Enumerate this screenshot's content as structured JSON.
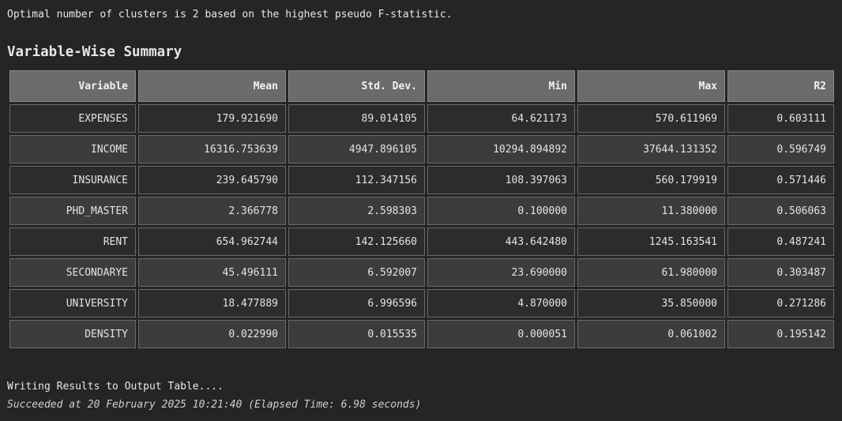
{
  "messages": {
    "optimal": "Optimal number of clusters is 2 based on the highest pseudo F-statistic.",
    "writing": "Writing Results to Output Table....",
    "succeeded": "Succeeded at 20 February 2025 10:21:40 (Elapsed Time: 6.98 seconds)"
  },
  "summary": {
    "title": "Variable-Wise Summary",
    "columns": [
      "Variable",
      "Mean",
      "Std. Dev.",
      "Min",
      "Max",
      "R2"
    ],
    "rows": [
      [
        "EXPENSES",
        "179.921690",
        "89.014105",
        "64.621173",
        "570.611969",
        "0.603111"
      ],
      [
        "INCOME",
        "16316.753639",
        "4947.896105",
        "10294.894892",
        "37644.131352",
        "0.596749"
      ],
      [
        "INSURANCE",
        "239.645790",
        "112.347156",
        "108.397063",
        "560.179919",
        "0.571446"
      ],
      [
        "PHD_MASTER",
        "2.366778",
        "2.598303",
        "0.100000",
        "11.380000",
        "0.506063"
      ],
      [
        "RENT",
        "654.962744",
        "142.125660",
        "443.642480",
        "1245.163541",
        "0.487241"
      ],
      [
        "SECONDARYE",
        "45.496111",
        "6.592007",
        "23.690000",
        "61.980000",
        "0.303487"
      ],
      [
        "UNIVERSITY",
        "18.477889",
        "6.996596",
        "4.870000",
        "35.850000",
        "0.271286"
      ],
      [
        "DENSITY",
        "0.022990",
        "0.015535",
        "0.000051",
        "0.061002",
        "0.195142"
      ]
    ]
  },
  "colors": {
    "background": "#252526",
    "header_cell": "#6b6b6b",
    "row_odd": "#2c2c2c",
    "row_even": "#3c3c3c",
    "text": "#e4e4e4"
  }
}
